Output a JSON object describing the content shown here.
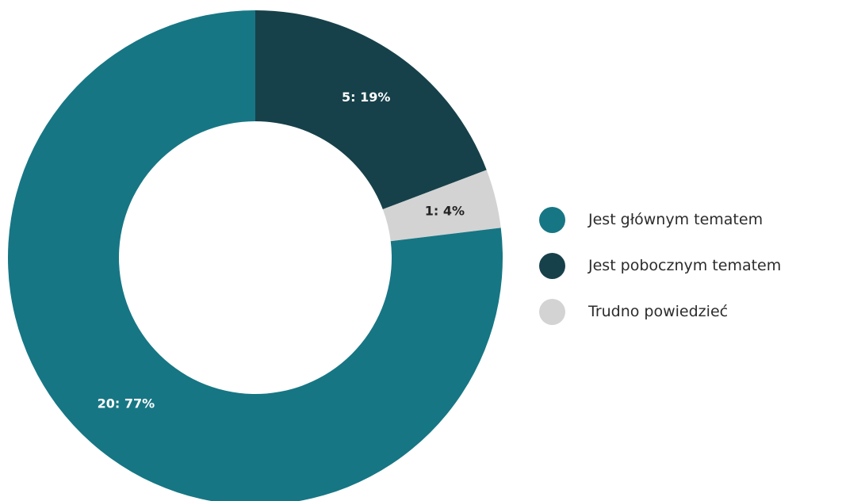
{
  "chart_data": {
    "type": "pie",
    "title": "",
    "categories": [
      "Jest głównym tematem",
      "Jest pobocznym tematem",
      "Trudno powiedzieć"
    ],
    "values": [
      20,
      5,
      1
    ],
    "labels": [
      "20: 77%",
      "5: 19%",
      "1: 4%"
    ],
    "colors": [
      "#167684",
      "#17414A",
      "#D3D3D3"
    ],
    "label_colors": [
      "#ffffff",
      "#ffffff",
      "#222222"
    ],
    "donut": true,
    "legend_position": "right"
  }
}
